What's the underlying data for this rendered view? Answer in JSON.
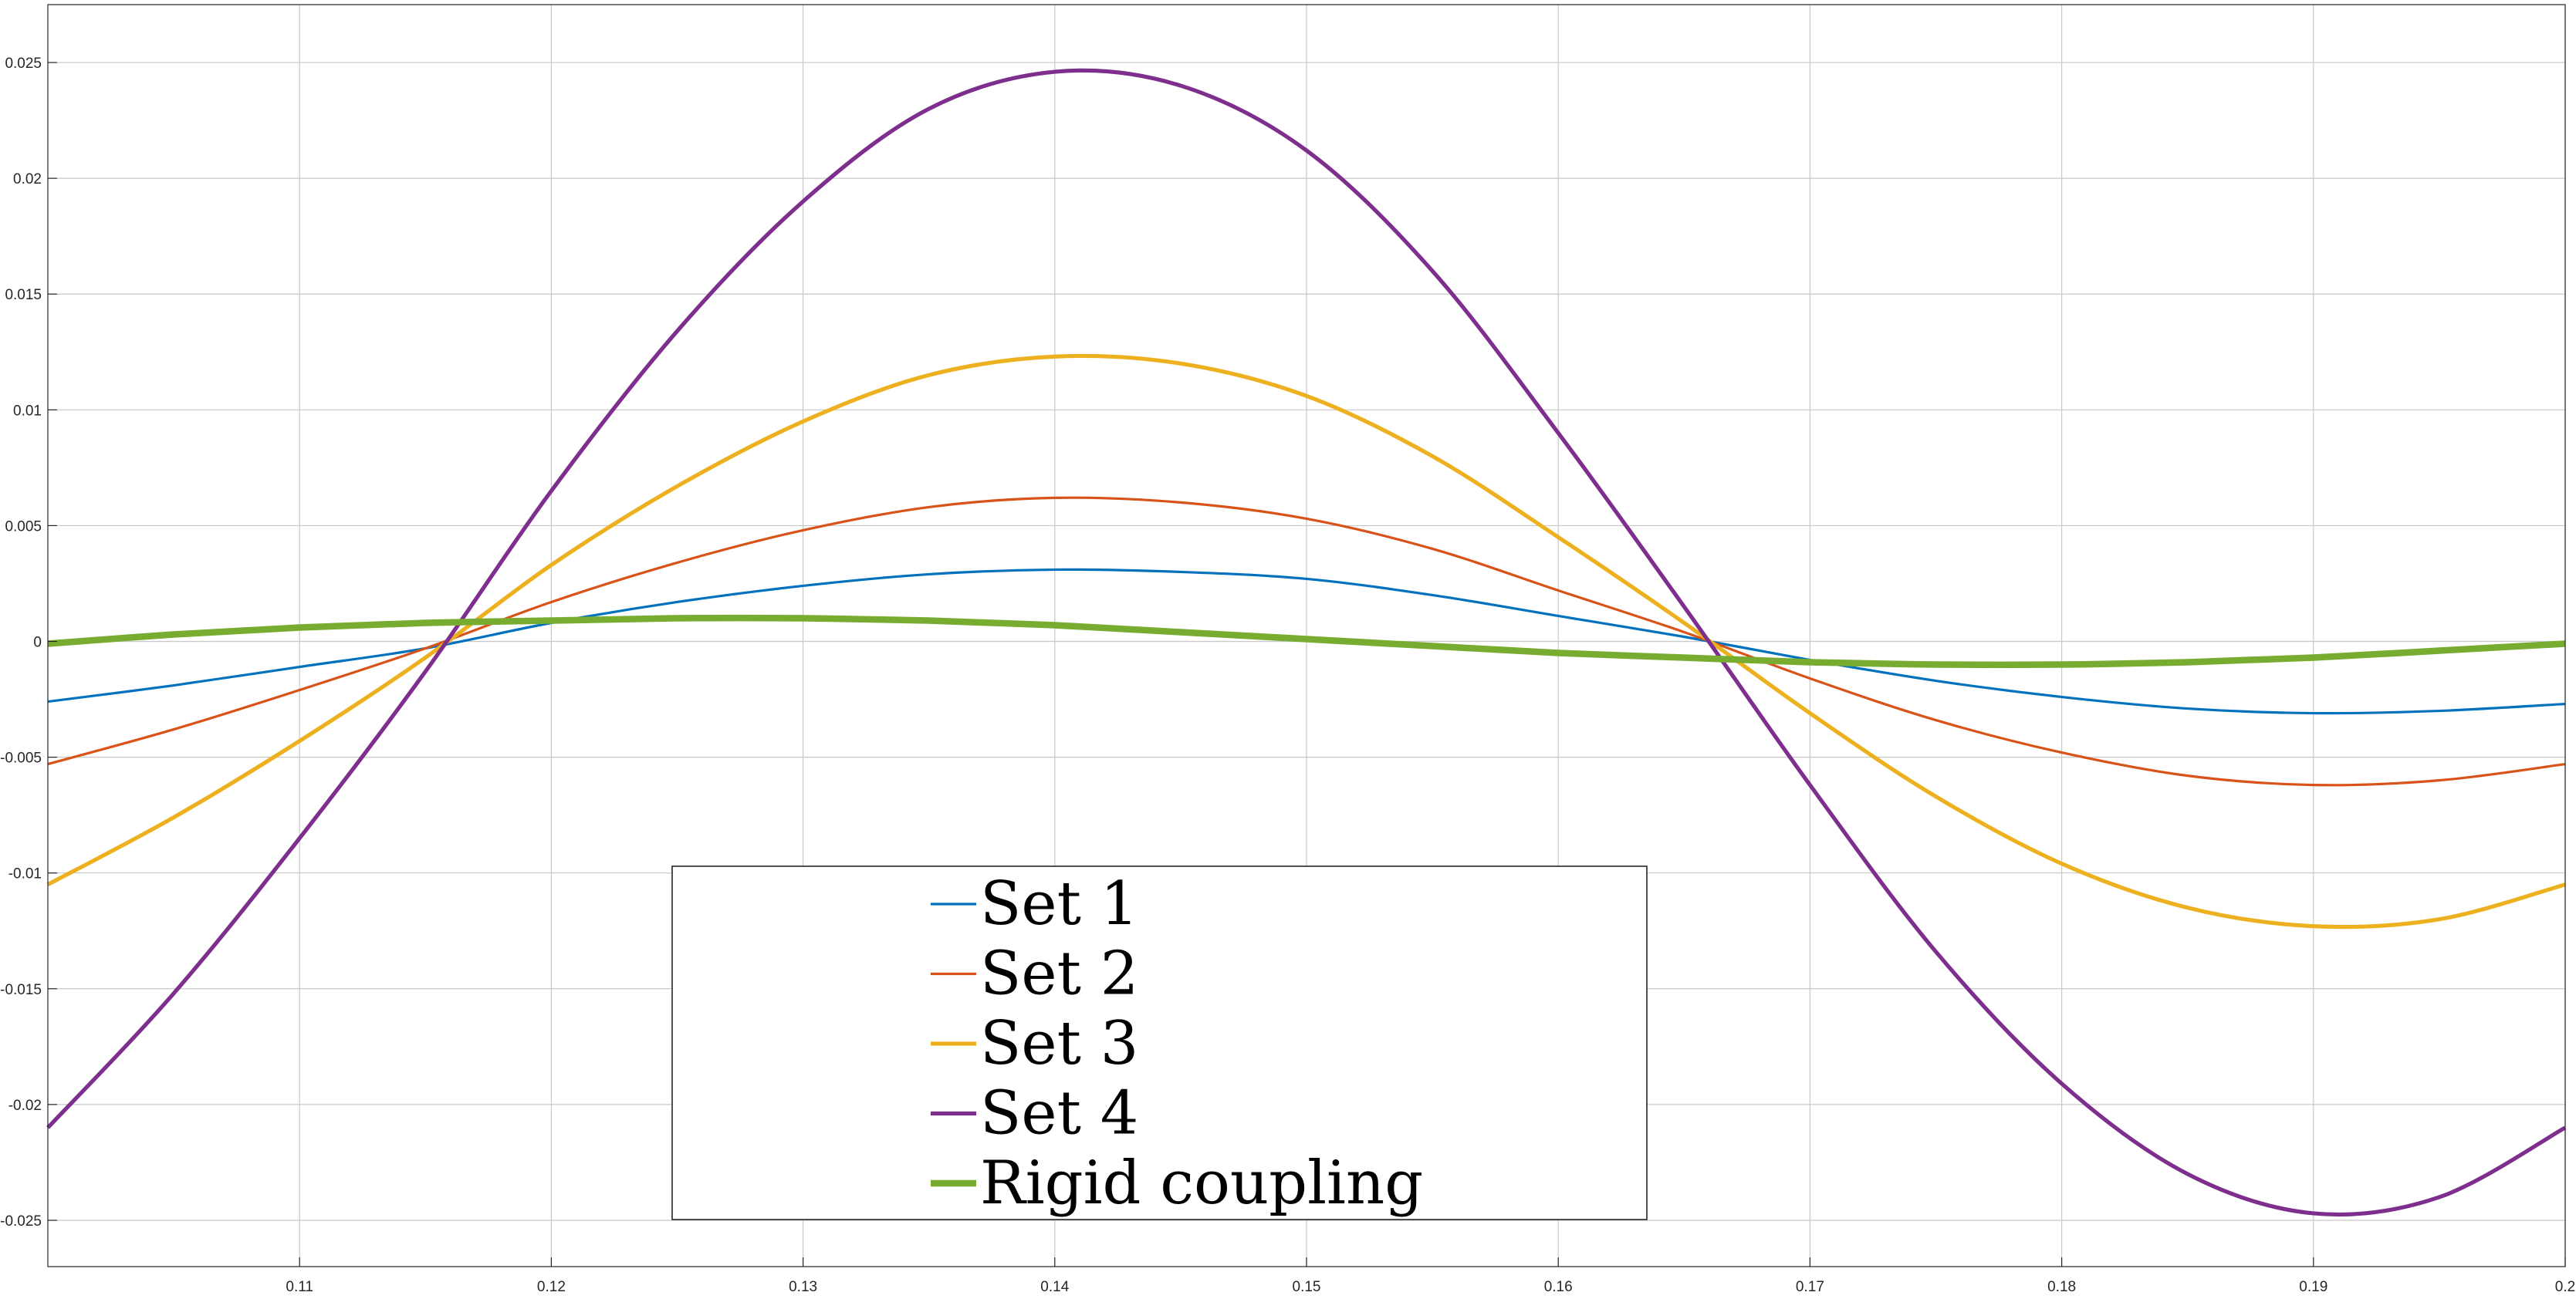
{
  "chart_data": {
    "type": "line",
    "title": "",
    "xlabel": "",
    "ylabel": "",
    "xlim": [
      0.1,
      0.2
    ],
    "ylim": [
      -0.027,
      0.0275
    ],
    "grid": true,
    "legend_position": "bottom-center",
    "x_ticks": [
      {
        "value": 0.11,
        "label": "0.11"
      },
      {
        "value": 0.12,
        "label": "0.12"
      },
      {
        "value": 0.13,
        "label": "0.13"
      },
      {
        "value": 0.14,
        "label": "0.14"
      },
      {
        "value": 0.15,
        "label": "0.15"
      },
      {
        "value": 0.16,
        "label": "0.16"
      },
      {
        "value": 0.17,
        "label": "0.17"
      },
      {
        "value": 0.18,
        "label": "0.18"
      },
      {
        "value": 0.19,
        "label": "0.19"
      },
      {
        "value": 0.2,
        "label": "0.2"
      }
    ],
    "y_ticks": [
      {
        "value": -0.025,
        "label": "-0.025"
      },
      {
        "value": -0.02,
        "label": "-0.02"
      },
      {
        "value": -0.015,
        "label": "-0.015"
      },
      {
        "value": -0.01,
        "label": "-0.01"
      },
      {
        "value": -0.005,
        "label": "-0.005"
      },
      {
        "value": 0,
        "label": "0"
      },
      {
        "value": 0.005,
        "label": "0.005"
      },
      {
        "value": 0.01,
        "label": "0.01"
      },
      {
        "value": 0.015,
        "label": "0.015"
      },
      {
        "value": 0.02,
        "label": "0.02"
      },
      {
        "value": 0.025,
        "label": "0.025"
      }
    ],
    "x": [
      0.1,
      0.105,
      0.11,
      0.115,
      0.12,
      0.125,
      0.13,
      0.135,
      0.14,
      0.145,
      0.15,
      0.155,
      0.16,
      0.165,
      0.17,
      0.175,
      0.18,
      0.185,
      0.19,
      0.195,
      0.2
    ],
    "series": [
      {
        "name": "Set 1",
        "color": "#0072BD",
        "width": 1,
        "values": [
          -0.0026,
          -0.0019,
          -0.0011,
          -0.0003,
          0.0008,
          0.0017,
          0.0024,
          0.0029,
          0.0031,
          0.003,
          0.0027,
          0.002,
          0.0011,
          0.0002,
          -0.0008,
          -0.0017,
          -0.0024,
          -0.0029,
          -0.0031,
          -0.003,
          -0.0027
        ]
      },
      {
        "name": "Set 2",
        "color": "#D95319",
        "width": 1,
        "values": [
          -0.0053,
          -0.0038,
          -0.0021,
          -0.0003,
          0.0017,
          0.0034,
          0.0048,
          0.0058,
          0.0062,
          0.006,
          0.0053,
          0.004,
          0.0022,
          0.0004,
          -0.0016,
          -0.0034,
          -0.0048,
          -0.0058,
          -0.0062,
          -0.006,
          -0.0053
        ]
      },
      {
        "name": "Set 3",
        "color": "#EDB120",
        "width": 1.4,
        "values": [
          -0.0105,
          -0.0076,
          -0.0043,
          -0.0007,
          0.0033,
          0.0067,
          0.0095,
          0.0115,
          0.0123,
          0.012,
          0.0106,
          0.008,
          0.0045,
          0.0008,
          -0.0031,
          -0.0067,
          -0.0096,
          -0.0115,
          -0.0123,
          -0.012,
          -0.0105
        ]
      },
      {
        "name": "Set 4",
        "color": "#7E2F8E",
        "width": 1.4,
        "values": [
          -0.021,
          -0.0152,
          -0.0085,
          -0.0013,
          0.0065,
          0.0134,
          0.019,
          0.023,
          0.0246,
          0.024,
          0.0212,
          0.016,
          0.009,
          0.0015,
          -0.0062,
          -0.0134,
          -0.0191,
          -0.023,
          -0.0247,
          -0.024,
          -0.021
        ]
      },
      {
        "name": "Rigid coupling",
        "color": "#77AC30",
        "width": 2.6,
        "values": [
          -0.0001,
          0.0003,
          0.0006,
          0.0008,
          0.0009,
          0.001,
          0.001,
          0.0009,
          0.0007,
          0.0004,
          0.0001,
          -0.0002,
          -0.0005,
          -0.0007,
          -0.0009,
          -0.001,
          -0.001,
          -0.0009,
          -0.0007,
          -0.0004,
          -0.0001
        ]
      }
    ]
  }
}
